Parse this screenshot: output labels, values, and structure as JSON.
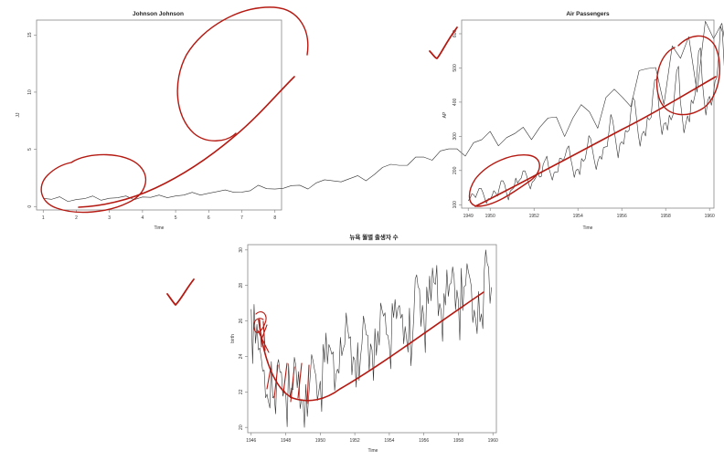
{
  "annotation_color": "#b51a12",
  "series_color": "#333333",
  "chart_data": [
    {
      "id": "jj",
      "type": "line",
      "title": "Johnson Johnson",
      "xlabel": "Time",
      "ylabel": "JJ",
      "xlim": [
        0.8,
        8.2
      ],
      "ylim": [
        -0.3,
        16.3
      ],
      "x_ticks": [
        1,
        2,
        3,
        4,
        5,
        6,
        7,
        8
      ],
      "y_ticks": [
        0,
        5,
        10,
        15
      ],
      "x_start": 1.0,
      "x_step": 0.25,
      "values": [
        0.71,
        0.63,
        0.85,
        0.44,
        0.61,
        0.69,
        0.92,
        0.55,
        0.72,
        0.77,
        0.92,
        0.6,
        0.83,
        0.8,
        1.0,
        0.77,
        0.92,
        1.0,
        1.24,
        1.0,
        1.16,
        1.3,
        1.45,
        1.25,
        1.26,
        1.38,
        1.86,
        1.56,
        1.53,
        1.59,
        1.83,
        1.86,
        1.53,
        2.07,
        2.34,
        2.25,
        2.16,
        2.43,
        2.7,
        2.25,
        2.79,
        3.42,
        3.69,
        3.6,
        3.6,
        4.32,
        4.32,
        4.05,
        4.86,
        5.04,
        5.04,
        4.41,
        5.58,
        5.85,
        6.57,
        5.31,
        6.03,
        6.39,
        6.93,
        5.85,
        6.93,
        7.74,
        7.83,
        6.12,
        7.74,
        8.91,
        8.28,
        6.84,
        9.54,
        10.26,
        9.54,
        8.73,
        11.88,
        12.06,
        12.15,
        8.91,
        14.04,
        12.96,
        14.85,
        9.99,
        16.2,
        14.67,
        16.02,
        11.61
      ]
    },
    {
      "id": "air",
      "type": "line",
      "title": "Air Passengers",
      "xlabel": "Time",
      "ylabel": "AP",
      "xlim": [
        1948.7,
        1960.2
      ],
      "ylim": [
        90,
        640
      ],
      "x_ticks": [
        1949,
        1950,
        1952,
        1954,
        1956,
        1958,
        1960
      ],
      "y_ticks": [
        100,
        200,
        300,
        400,
        500,
        600
      ],
      "x_start": 1949.0,
      "x_step": 0.0833333,
      "values": [
        112,
        118,
        132,
        129,
        121,
        135,
        148,
        148,
        136,
        119,
        104,
        118,
        115,
        126,
        141,
        135,
        125,
        149,
        170,
        170,
        158,
        133,
        114,
        140,
        145,
        150,
        178,
        163,
        172,
        178,
        199,
        199,
        184,
        162,
        146,
        166,
        171,
        180,
        193,
        181,
        183,
        218,
        230,
        242,
        209,
        191,
        172,
        194,
        196,
        196,
        236,
        235,
        229,
        243,
        264,
        272,
        237,
        211,
        180,
        201,
        204,
        188,
        235,
        227,
        234,
        264,
        302,
        293,
        259,
        229,
        203,
        229,
        242,
        233,
        267,
        269,
        270,
        315,
        364,
        347,
        312,
        274,
        237,
        278,
        284,
        277,
        317,
        313,
        318,
        374,
        413,
        405,
        355,
        306,
        271,
        306,
        315,
        301,
        356,
        348,
        355,
        422,
        465,
        467,
        404,
        347,
        305,
        336,
        340,
        318,
        362,
        348,
        363,
        435,
        491,
        505,
        404,
        359,
        310,
        337,
        360,
        342,
        406,
        396,
        420,
        472,
        548,
        559,
        463,
        407,
        362,
        405,
        417,
        391,
        419,
        461,
        472,
        535,
        622,
        606,
        508,
        461,
        390,
        432
      ]
    },
    {
      "id": "births",
      "type": "line",
      "title": "뉴욕 월별 출생자 수",
      "xlabel": "Time",
      "ylabel": "birth",
      "xlim": [
        1945.8,
        1960.2
      ],
      "ylim": [
        19.7,
        30.3
      ],
      "x_ticks": [
        1946,
        1948,
        1950,
        1952,
        1954,
        1956,
        1958,
        1960
      ],
      "y_ticks": [
        20,
        22,
        24,
        26,
        28,
        30
      ],
      "x_start": 1946.0,
      "x_step": 0.0833333,
      "values": [
        26.663,
        23.598,
        26.931,
        24.74,
        25.806,
        24.364,
        24.477,
        23.901,
        23.175,
        23.227,
        21.672,
        21.87,
        21.439,
        21.089,
        23.709,
        21.669,
        21.752,
        20.761,
        23.479,
        23.824,
        23.105,
        23.11,
        21.759,
        22.073,
        21.937,
        20.035,
        23.59,
        21.672,
        22.222,
        22.123,
        23.95,
        23.504,
        22.238,
        23.142,
        21.059,
        21.573,
        21.548,
        20.0,
        22.424,
        20.615,
        21.761,
        22.874,
        24.104,
        23.748,
        23.262,
        22.907,
        21.519,
        22.025,
        22.604,
        20.894,
        24.677,
        23.673,
        25.32,
        23.583,
        24.671,
        24.454,
        24.122,
        24.252,
        22.084,
        22.991,
        23.287,
        23.049,
        25.076,
        24.037,
        24.43,
        24.667,
        26.451,
        25.618,
        25.014,
        25.11,
        22.964,
        23.981,
        23.798,
        22.27,
        24.775,
        22.646,
        23.988,
        24.737,
        26.276,
        25.816,
        25.21,
        25.199,
        23.162,
        24.707,
        24.364,
        22.644,
        25.565,
        24.062,
        25.431,
        24.635,
        27.009,
        26.606,
        26.268,
        26.462,
        25.246,
        25.18,
        24.657,
        23.304,
        26.982,
        26.199,
        27.21,
        26.122,
        26.706,
        26.878,
        26.152,
        26.379,
        24.712,
        25.688,
        24.99,
        24.239,
        26.721,
        23.475,
        24.767,
        26.219,
        28.361,
        28.599,
        27.914,
        27.784,
        25.693,
        26.881,
        26.217,
        24.218,
        27.914,
        26.975,
        28.527,
        27.139,
        28.982,
        28.169,
        28.056,
        29.136,
        26.291,
        26.987,
        26.589,
        24.848,
        27.543,
        26.896,
        28.878,
        27.39,
        28.065,
        28.141,
        29.048,
        28.484,
        26.634,
        27.735,
        27.132,
        24.924,
        28.963,
        26.589,
        27.931,
        28.009,
        29.229,
        28.759,
        28.405,
        27.945,
        25.912,
        26.619,
        26.076,
        25.286,
        27.66,
        25.951,
        26.398,
        25.565,
        28.865,
        30.0,
        29.261,
        29.012,
        26.992,
        27.897
      ]
    }
  ]
}
